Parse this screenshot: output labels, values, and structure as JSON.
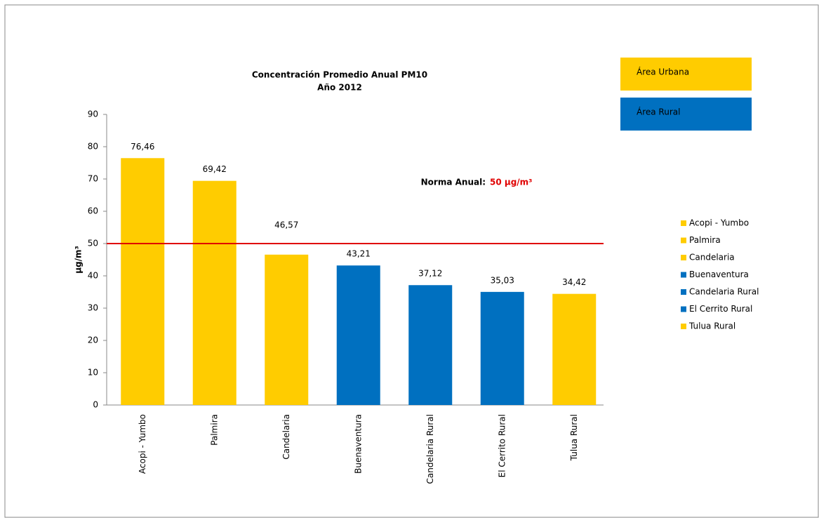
{
  "chart_data": {
    "type": "bar",
    "title": "Concentración  Promedio Anual PM10",
    "subtitle": "Año 2012",
    "y_label": "µg/m³",
    "categories": [
      "Acopi - Yumbo",
      "Palmira",
      "Candelaria",
      "Buenaventura",
      "Candelaria Rural",
      "El Cerrito Rural",
      "Tulua Rural"
    ],
    "values": [
      76.46,
      69.42,
      46.57,
      43.21,
      37.12,
      35.03,
      34.42
    ],
    "value_labels": [
      "76,46",
      "69,42",
      "46,57",
      "43,21",
      "37,12",
      "35,03",
      "34,42"
    ],
    "colors": [
      "#ffcc00",
      "#ffcc00",
      "#ffcc00",
      "#0070c0",
      "#0070c0",
      "#0070c0",
      "#ffcc00"
    ],
    "ylim": [
      0,
      90
    ],
    "yticks": [
      0,
      10,
      20,
      30,
      40,
      50,
      60,
      70,
      80,
      90
    ],
    "reference_line": {
      "value": 50,
      "color": "#e00000",
      "label": "Norma Anual:",
      "value_label": "50 µg/m³"
    },
    "area_boxes": [
      {
        "label": "Área Urbana",
        "color": "#ffcc00"
      },
      {
        "label": "Área Rural",
        "color": "#0070c0"
      }
    ],
    "legend": "right"
  }
}
